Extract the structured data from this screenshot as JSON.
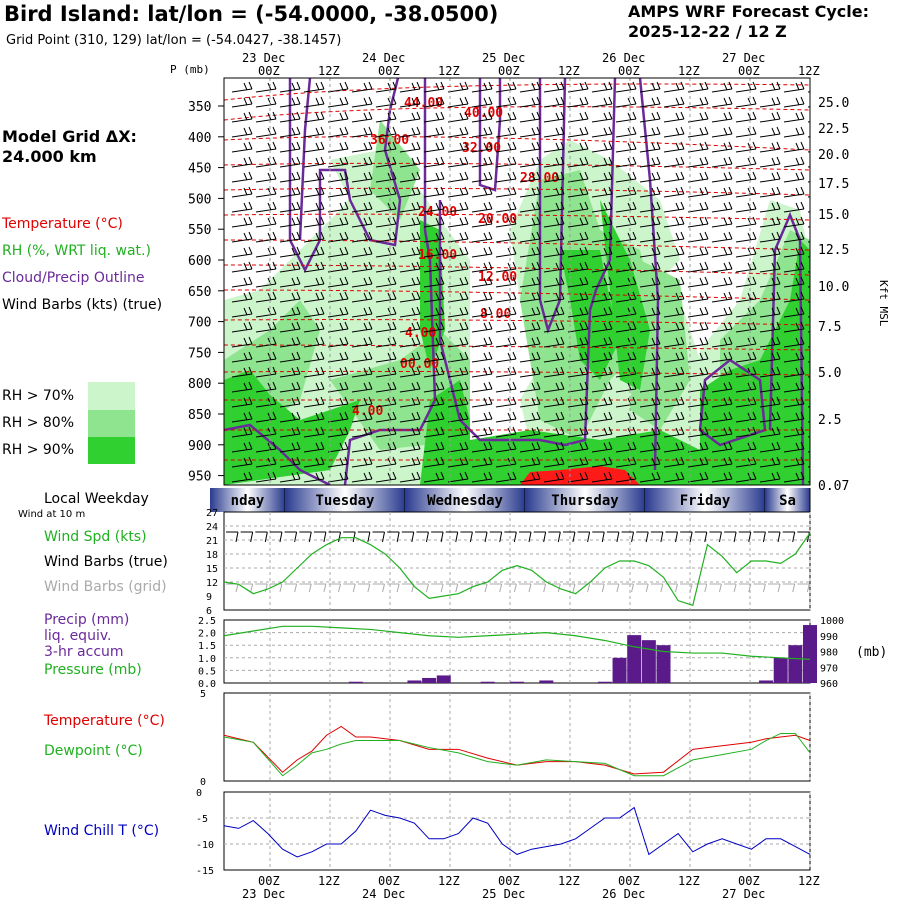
{
  "header": {
    "title": "Bird Island:  lat/lon = (-54.0000, -38.0500)",
    "grid_point": "Grid Point (310, 129) lat/lon = (-54.0427, -38.1457)",
    "forecast_line1": "AMPS WRF Forecast Cycle:",
    "forecast_line2": "2025-12-22 / 12  Z",
    "model_grid_label": "Model Grid ΔX:",
    "model_grid_value": " 24.000 km"
  },
  "colors": {
    "temperature": "#e00000",
    "rh": "#20b020",
    "cloud": "#6a2a9a",
    "wind_chill": "#0000c0",
    "precip_bar": "#5a1a8a",
    "rh70": "#ccf5cc",
    "rh80": "#8fe58f",
    "rh90": "#30d030",
    "weekday_band": "#2a3b8f"
  },
  "legend": {
    "temperature": "Temperature (°C)",
    "rh": "RH (%, WRT liq. wat.)",
    "cloud": "Cloud/Precip Outline",
    "wind_barbs": "Wind Barbs (kts) (true)",
    "rh70": "RH > 70%",
    "rh80": "RH > 80%",
    "rh90": "RH > 90%"
  },
  "axes": {
    "pressure_label": "P (mb)",
    "pressure_ticks": [
      "350",
      "400",
      "450",
      "500",
      "550",
      "600",
      "650",
      "700",
      "750",
      "800",
      "850",
      "900",
      "950"
    ],
    "height_ticks": [
      "25.0",
      "22.5",
      "20.0",
      "17.5",
      "15.0",
      "12.5",
      "10.0",
      "7.5",
      "5.0",
      "2.5",
      "0.07"
    ],
    "height_label": "Kft MSL",
    "time_ticks": [
      "00Z",
      "12Z",
      "00Z",
      "12Z",
      "00Z",
      "12Z",
      "00Z",
      "12Z",
      "00Z",
      "12Z"
    ],
    "date_labels": [
      "23 Dec",
      "24 Dec",
      "25 Dec",
      "26 Dec",
      "27 Dec"
    ]
  },
  "weekday": {
    "label": "Local Weekday",
    "days": [
      "nday",
      "Tuesday",
      "Wednesday",
      "Thursday",
      "Friday",
      "Sa"
    ]
  },
  "temp_contours": [
    "44.00",
    "40.00",
    "36.00",
    "32.00",
    "28.00",
    "24.00",
    "20.00",
    "16.00",
    "12.00",
    "8.00",
    "4.00",
    "00.00",
    "4.00"
  ],
  "panels": {
    "wind": {
      "title": "Wind at 10 m",
      "labels": [
        "Wind Spd (kts)",
        "Wind Barbs (true)",
        "Wind Barbs (grid)"
      ],
      "ticks": [
        "27",
        "24",
        "21",
        "18",
        "15",
        "12",
        "9",
        "6"
      ]
    },
    "precip": {
      "labels": [
        "Precip (mm)",
        "liq. equiv.",
        "3-hr accum",
        "Pressure (mb)"
      ],
      "left_ticks": [
        "2.5",
        "2.0",
        "1.5",
        "1.0",
        "0.5",
        "0.0"
      ],
      "right_ticks": [
        "1000",
        "990",
        "980",
        "970",
        "960"
      ],
      "right_unit": "(mb)"
    },
    "temp": {
      "labels": [
        "Temperature (°C)",
        "Dewpoint (°C)"
      ],
      "ticks": [
        "5",
        "0"
      ]
    },
    "chill": {
      "labels": [
        "Wind Chill T (°C)"
      ],
      "ticks": [
        "0",
        "-5",
        "-10",
        "-15"
      ]
    }
  },
  "chart_data": [
    {
      "type": "line",
      "title": "Wind Spd (kts) at 10 m",
      "x": [
        0,
        1,
        2,
        3,
        4,
        5,
        6,
        7,
        8,
        9,
        10,
        11,
        12,
        13,
        14,
        15,
        16,
        17,
        18,
        19,
        20,
        21,
        22,
        23,
        24,
        25,
        26,
        27,
        28,
        29,
        30,
        31,
        32,
        33,
        34,
        35,
        36,
        37,
        38,
        39,
        40
      ],
      "series": [
        {
          "name": "Wind Spd (kts)",
          "values": [
            12,
            11.5,
            9.5,
            10.5,
            12,
            15,
            18,
            20,
            21.5,
            21.5,
            20,
            18,
            15,
            11,
            8.5,
            9,
            9.5,
            11,
            12,
            14.5,
            15.5,
            14.5,
            12,
            10.5,
            9.5,
            12,
            15,
            16.5,
            16.5,
            15.5,
            13,
            8,
            7,
            20,
            17.5,
            14,
            16.5,
            16.5,
            16,
            18,
            22.5
          ]
        }
      ],
      "ylim": [
        6,
        27
      ]
    },
    {
      "type": "bar",
      "title": "Precip (mm) liq. equiv. 3-hr accum",
      "x": [
        0,
        1,
        2,
        3,
        4,
        5,
        6,
        7,
        8,
        9,
        10,
        11,
        12,
        13,
        14,
        15,
        16,
        17,
        18,
        19,
        20,
        21,
        22,
        23,
        24,
        25,
        26,
        27,
        28,
        29,
        30,
        31,
        32,
        33,
        34,
        35,
        36,
        37,
        38,
        39,
        40
      ],
      "values": [
        0,
        0,
        0,
        0,
        0,
        0,
        0,
        0,
        0,
        0.05,
        0,
        0,
        0,
        0.1,
        0.2,
        0.3,
        0,
        0,
        0.05,
        0,
        0.05,
        0,
        0.1,
        0,
        0,
        0,
        0.05,
        1.0,
        1.9,
        1.7,
        1.5,
        0,
        0,
        0,
        0,
        0,
        0,
        0.1,
        1.0,
        1.5,
        2.3
      ],
      "ylim": [
        0,
        2.5
      ]
    },
    {
      "type": "line",
      "title": "Pressure (mb)",
      "x": [
        0,
        2,
        4,
        6,
        8,
        10,
        12,
        14,
        16,
        18,
        20,
        22,
        24,
        26,
        28,
        30,
        32,
        34,
        36,
        38,
        40
      ],
      "values": [
        990,
        993,
        996,
        996,
        995,
        994,
        992,
        990,
        989,
        990,
        991,
        992,
        990,
        987,
        983,
        980,
        979,
        979,
        977,
        976,
        975
      ],
      "ylim": [
        960,
        1000
      ]
    },
    {
      "type": "line",
      "title": "Temperature / Dewpoint (°C)",
      "x": [
        0,
        2,
        4,
        5,
        6,
        7,
        8,
        9,
        10,
        12,
        14,
        16,
        18,
        20,
        22,
        24,
        26,
        28,
        30,
        32,
        34,
        36,
        37,
        38,
        39,
        40
      ],
      "series": [
        {
          "name": "Temperature (°C)",
          "values": [
            2.6,
            2.2,
            0.5,
            1.2,
            1.7,
            2.6,
            3.1,
            2.5,
            2.5,
            2.3,
            1.8,
            1.8,
            1.3,
            0.9,
            1.1,
            1.1,
            0.9,
            0.4,
            0.5,
            1.8,
            2.0,
            2.2,
            2.4,
            2.5,
            2.6,
            2.3
          ]
        },
        {
          "name": "Dewpoint (°C)",
          "values": [
            2.5,
            2.2,
            0.3,
            0.9,
            1.6,
            1.8,
            2.1,
            2.3,
            2.3,
            2.3,
            1.9,
            1.6,
            1.1,
            0.9,
            1.2,
            1.1,
            1.0,
            0.3,
            0.3,
            1.2,
            1.5,
            1.8,
            2.3,
            2.7,
            2.7,
            1.6
          ]
        }
      ],
      "ylim": [
        0,
        5
      ]
    },
    {
      "type": "line",
      "title": "Wind Chill T (°C)",
      "x": [
        0,
        1,
        2,
        3,
        4,
        5,
        6,
        7,
        8,
        9,
        10,
        11,
        12,
        13,
        14,
        15,
        16,
        17,
        18,
        19,
        20,
        21,
        22,
        23,
        24,
        25,
        26,
        27,
        28,
        29,
        30,
        31,
        32,
        33,
        34,
        35,
        36,
        37,
        38,
        39,
        40
      ],
      "values": [
        -6.5,
        -7,
        -5.5,
        -8,
        -11,
        -12.5,
        -11.5,
        -10,
        -10,
        -7.5,
        -3.5,
        -4.5,
        -5,
        -6,
        -9,
        -9,
        -8,
        -5,
        -6,
        -10,
        -12,
        -11,
        -10.5,
        -10,
        -9,
        -7,
        -5,
        -5,
        -3,
        -12,
        -10,
        -8,
        -11.5,
        -10,
        -9,
        -10,
        -11,
        -9,
        -9,
        -10.5,
        -12
      ],
      "ylim": [
        -15,
        0
      ]
    }
  ]
}
